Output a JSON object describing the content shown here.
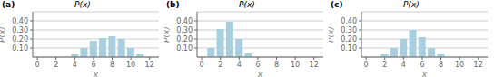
{
  "chart_data": [
    {
      "type": "bar",
      "title": "(a)",
      "annotation": "P(x)",
      "x_label": "x",
      "y_label": "P(x)",
      "x": [
        4,
        5,
        6,
        7,
        8,
        9,
        10,
        11
      ],
      "values": [
        0.03,
        0.1,
        0.18,
        0.21,
        0.23,
        0.2,
        0.1,
        0.03
      ],
      "color": "#a8cfe0",
      "xlim": [
        -0.5,
        13
      ],
      "ylim": [
        0,
        0.5
      ],
      "xticks": [
        0,
        2,
        4,
        6,
        8,
        10,
        12
      ],
      "yticks": [
        {
          "value": 0.1,
          "label": "0.10"
        },
        {
          "value": 0.2,
          "label": "0.20"
        },
        {
          "value": 0.3,
          "label": "0.30"
        },
        {
          "value": 0.4,
          "label": "0.40"
        }
      ],
      "grid": true
    },
    {
      "type": "bar",
      "title": "(b)",
      "annotation": "P(x)",
      "x_label": "x",
      "y_label": "P(x)",
      "x": [
        1,
        2,
        3,
        4,
        5
      ],
      "values": [
        0.1,
        0.31,
        0.39,
        0.2,
        0.04
      ],
      "color": "#a8cfe0",
      "xlim": [
        -0.5,
        13
      ],
      "ylim": [
        0,
        0.5
      ],
      "xticks": [
        0,
        2,
        4,
        6,
        8,
        10,
        12
      ],
      "yticks": [
        {
          "value": 0.1,
          "label": "0.10"
        },
        {
          "value": 0.2,
          "label": "0.20"
        },
        {
          "value": 0.3,
          "label": "0.30"
        },
        {
          "value": 0.4,
          "label": "0.40"
        }
      ],
      "grid": true
    },
    {
      "type": "bar",
      "title": "(c)",
      "annotation": "P(x)",
      "x_label": "x",
      "y_label": "P(x)",
      "x": [
        2,
        3,
        4,
        5,
        6,
        7,
        8
      ],
      "values": [
        0.03,
        0.1,
        0.2,
        0.3,
        0.22,
        0.1,
        0.03
      ],
      "color": "#a8cfe0",
      "xlim": [
        -0.5,
        13
      ],
      "ylim": [
        0,
        0.5
      ],
      "xticks": [
        0,
        2,
        4,
        6,
        8,
        10,
        12
      ],
      "yticks": [
        {
          "value": 0.1,
          "label": "0.10"
        },
        {
          "value": 0.2,
          "label": "0.20"
        },
        {
          "value": 0.3,
          "label": "0.30"
        },
        {
          "value": 0.4,
          "label": "0.40"
        }
      ],
      "grid": true
    }
  ]
}
